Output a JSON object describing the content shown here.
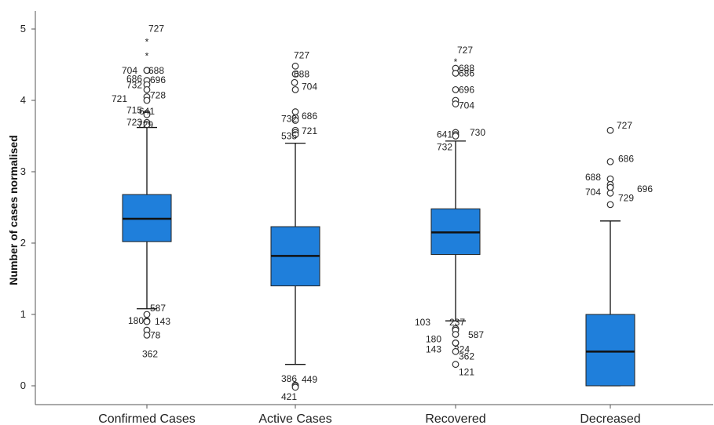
{
  "chart_data": {
    "type": "boxplot",
    "ylabel": "Number of cases normalised",
    "xlabel": "",
    "ylim": [
      -0.25,
      5.3
    ],
    "yticks": [
      0,
      1,
      2,
      3,
      4,
      5
    ],
    "grid": false,
    "box_color": "#1f7fdb",
    "categories": [
      "Confirmed Cases",
      "Active Cases",
      "Recovered",
      "Decreased"
    ],
    "boxes": [
      {
        "name": "Confirmed Cases",
        "whisker_low": 1.08,
        "q1": 2.02,
        "median": 2.34,
        "q3": 2.68,
        "whisker_high": 3.62,
        "outliers": [
          {
            "value": 4.83,
            "marker": "star",
            "label": "727"
          },
          {
            "value": 4.63,
            "marker": "star",
            "label": ""
          },
          {
            "value": 4.42,
            "marker": "circle",
            "label": "704"
          },
          {
            "value": 4.42,
            "marker": "circle",
            "label": "688"
          },
          {
            "value": 4.28,
            "marker": "circle",
            "label": "686"
          },
          {
            "value": 4.22,
            "marker": "circle",
            "label": "696"
          },
          {
            "value": 4.15,
            "marker": "circle",
            "label": "732"
          },
          {
            "value": 4.05,
            "marker": "circle",
            "label": "728"
          },
          {
            "value": 4.0,
            "marker": "circle",
            "label": "721"
          },
          {
            "value": 3.82,
            "marker": "circle",
            "label": "715"
          },
          {
            "value": 3.8,
            "marker": "circle",
            "label": "641"
          },
          {
            "value": 3.69,
            "marker": "circle",
            "label": "723"
          },
          {
            "value": 3.66,
            "marker": "circle",
            "label": "729"
          },
          {
            "value": 1.0,
            "marker": "circle",
            "label": "587"
          },
          {
            "value": 0.91,
            "marker": "circle",
            "label": "180"
          },
          {
            "value": 0.9,
            "marker": "circle",
            "label": "143"
          },
          {
            "value": 0.78,
            "marker": "circle",
            "label": ""
          },
          {
            "value": 0.71,
            "marker": "circle",
            "label": "78"
          },
          {
            "value": 0.4,
            "marker": "none",
            "label": "362"
          }
        ]
      },
      {
        "name": "Active Cases",
        "whisker_low": 0.3,
        "q1": 1.4,
        "median": 1.82,
        "q3": 2.23,
        "whisker_high": 3.4,
        "outliers": [
          {
            "value": 4.48,
            "marker": "circle",
            "label": "727"
          },
          {
            "value": 4.37,
            "marker": "circle",
            "label": "688"
          },
          {
            "value": 4.25,
            "marker": "circle",
            "label": "",
            "dx": -1
          },
          {
            "value": 4.15,
            "marker": "circle",
            "label": "704"
          },
          {
            "value": 3.84,
            "marker": "circle",
            "label": ""
          },
          {
            "value": 3.76,
            "marker": "circle",
            "label": "686"
          },
          {
            "value": 3.72,
            "marker": "circle",
            "label": "732"
          },
          {
            "value": 3.58,
            "marker": "circle",
            "label": ""
          },
          {
            "value": 3.55,
            "marker": "circle",
            "label": "721"
          },
          {
            "value": 3.52,
            "marker": "circle",
            "label": "535"
          },
          {
            "value": 0.01,
            "marker": "circle",
            "label": "386"
          },
          {
            "value": 0.0,
            "marker": "circle",
            "label": "449"
          },
          {
            "value": -0.02,
            "marker": "circle",
            "label": "421"
          }
        ]
      },
      {
        "name": "Recovered",
        "whisker_low": 0.91,
        "q1": 1.84,
        "median": 2.15,
        "q3": 2.48,
        "whisker_high": 3.43,
        "outliers": [
          {
            "value": 4.55,
            "marker": "star",
            "label": "727"
          },
          {
            "value": 4.45,
            "marker": "circle",
            "label": "688"
          },
          {
            "value": 4.38,
            "marker": "circle",
            "label": "686"
          },
          {
            "value": 4.15,
            "marker": "circle",
            "label": "696"
          },
          {
            "value": 4.0,
            "marker": "circle",
            "label": ""
          },
          {
            "value": 3.95,
            "marker": "circle",
            "label": "704"
          },
          {
            "value": 3.55,
            "marker": "circle",
            "label": "730"
          },
          {
            "value": 3.52,
            "marker": "circle",
            "label": "641"
          },
          {
            "value": 3.5,
            "marker": "circle",
            "label": "732"
          },
          {
            "value": 0.8,
            "marker": "circle",
            "label": "103"
          },
          {
            "value": 0.8,
            "marker": "circle",
            "label": "237"
          },
          {
            "value": 0.78,
            "marker": "circle",
            "label": "587"
          },
          {
            "value": 0.72,
            "marker": "circle",
            "label": "180"
          },
          {
            "value": 0.6,
            "marker": "circle",
            "label": "143"
          },
          {
            "value": 0.6,
            "marker": "circle",
            "label": "324"
          },
          {
            "value": 0.48,
            "marker": "circle",
            "label": "362"
          },
          {
            "value": 0.3,
            "marker": "circle",
            "label": "121"
          }
        ]
      },
      {
        "name": "Decreased",
        "whisker_low": 0.0,
        "q1": 0.0,
        "median": 0.48,
        "q3": 1.0,
        "whisker_high": 2.31,
        "outliers": [
          {
            "value": 3.58,
            "marker": "circle",
            "label": "727"
          },
          {
            "value": 3.14,
            "marker": "circle",
            "label": "686"
          },
          {
            "value": 2.9,
            "marker": "circle",
            "label": "688"
          },
          {
            "value": 2.82,
            "marker": "circle",
            "label": ""
          },
          {
            "value": 2.78,
            "marker": "circle",
            "label": "704"
          },
          {
            "value": 2.78,
            "marker": "circle",
            "label": "696"
          },
          {
            "value": 2.7,
            "marker": "circle",
            "label": "729"
          },
          {
            "value": 2.54,
            "marker": "circle",
            "label": ""
          }
        ]
      }
    ]
  }
}
